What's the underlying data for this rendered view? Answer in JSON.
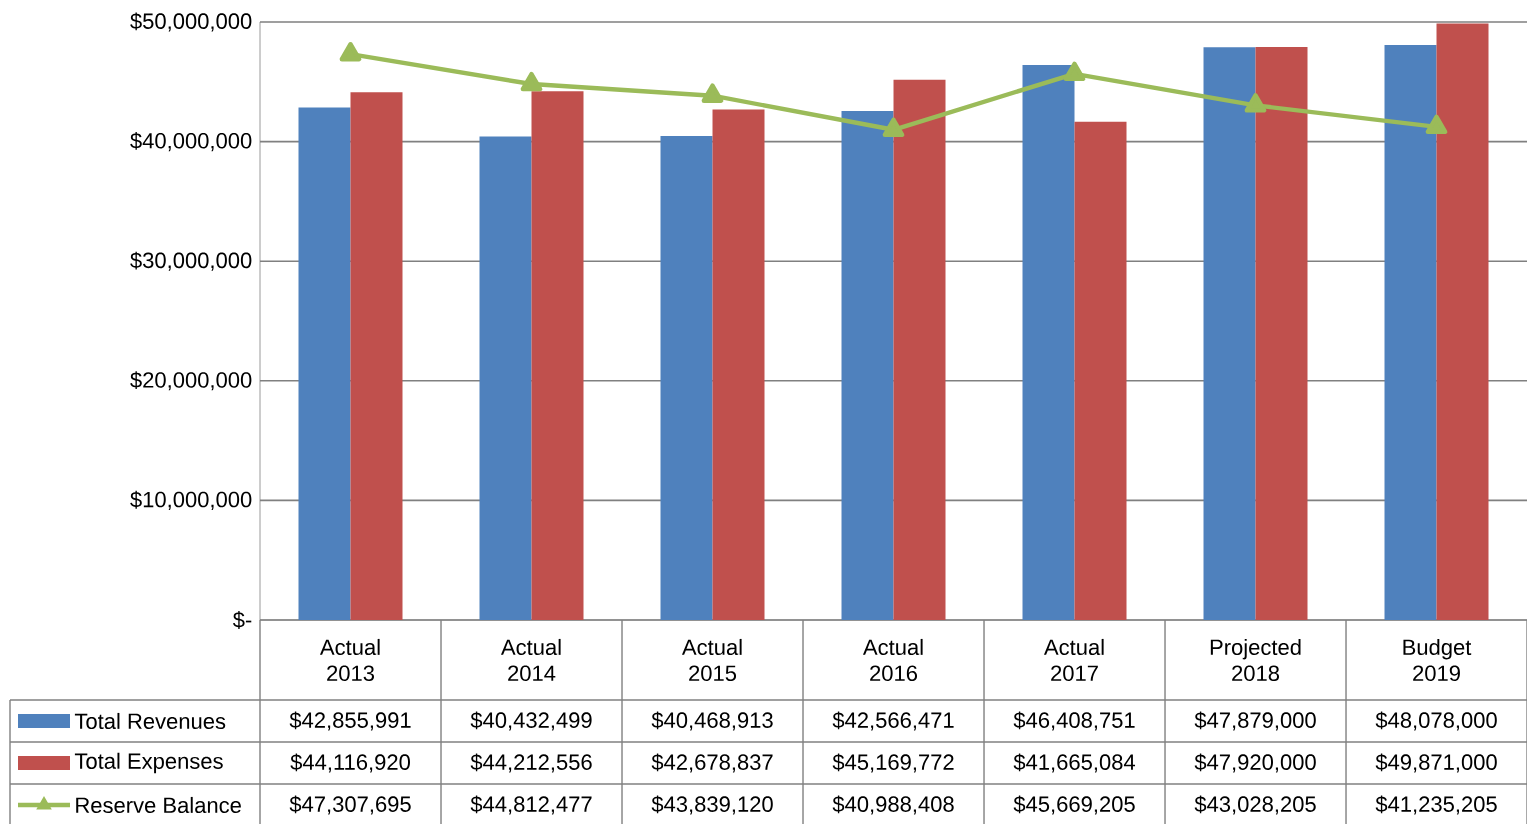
{
  "chart_data": {
    "type": "bar",
    "categories": [
      "Actual 2013",
      "Actual 2014",
      "Actual 2015",
      "Actual 2016",
      "Actual 2017",
      "Projected 2018",
      "Budget 2019"
    ],
    "series": [
      {
        "name": "Total Revenues",
        "color": "#4f81bd",
        "values": [
          42855991,
          40432499,
          40468913,
          42566471,
          46408751,
          47879000,
          48078000
        ],
        "value_labels": [
          "$42,855,991",
          "$40,432,499",
          "$40,468,913",
          "$42,566,471",
          "$46,408,751",
          "$47,879,000",
          "$48,078,000"
        ]
      },
      {
        "name": "Total Expenses",
        "color": "#c0504d",
        "values": [
          44116920,
          44212556,
          42678837,
          45169772,
          41665084,
          47920000,
          49871000
        ],
        "value_labels": [
          "$44,116,920",
          "$44,212,556",
          "$42,678,837",
          "$45,169,772",
          "$41,665,084",
          "$47,920,000",
          "$49,871,000"
        ]
      },
      {
        "name": "Reserve Balance",
        "type": "line",
        "marker": "triangle",
        "color": "#9bbb59",
        "values": [
          47307695,
          44812477,
          43839120,
          40988408,
          45669205,
          43028205,
          41235205
        ],
        "value_labels": [
          "$47,307,695",
          "$44,812,477",
          "$43,839,120",
          "$40,988,408",
          "$45,669,205",
          "$43,028,205",
          "$41,235,205"
        ]
      }
    ],
    "ylim": [
      0,
      50000000
    ],
    "yticks": [
      {
        "value": 0,
        "label": "$-"
      },
      {
        "value": 10000000,
        "label": "$10,000,000"
      },
      {
        "value": 20000000,
        "label": "$20,000,000"
      },
      {
        "value": 30000000,
        "label": "$30,000,000"
      },
      {
        "value": 40000000,
        "label": "$40,000,000"
      },
      {
        "value": 50000000,
        "label": "$50,000,000"
      }
    ],
    "grid": "y",
    "legend": "bottom"
  }
}
